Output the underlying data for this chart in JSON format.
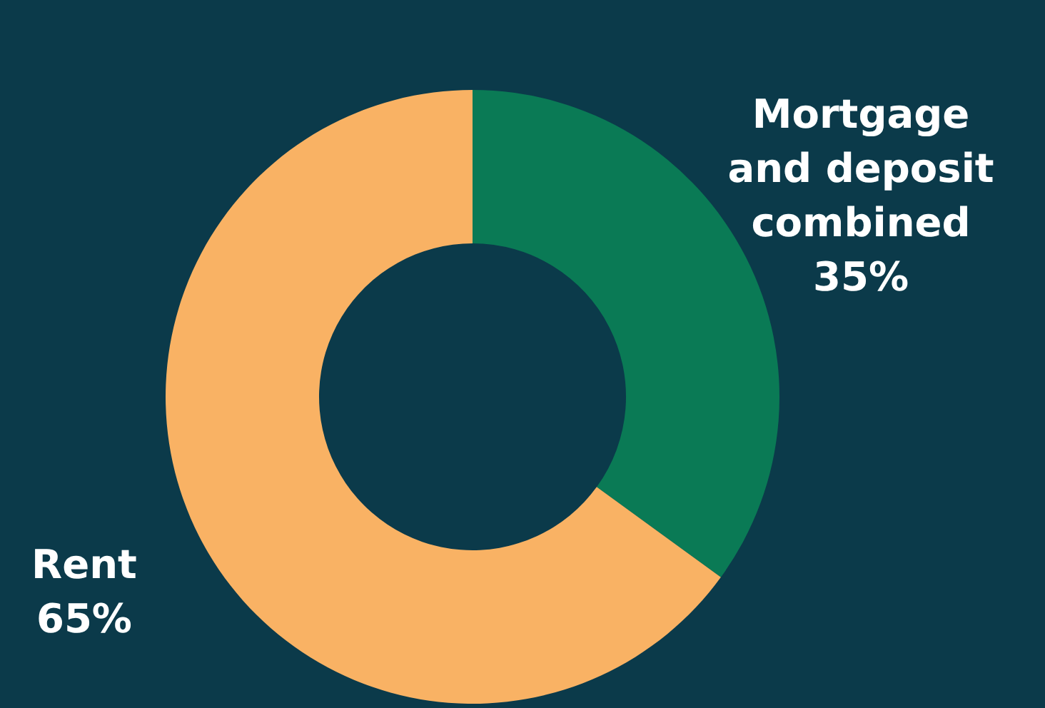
{
  "chart_data": {
    "type": "donut",
    "categories": [
      "Mortgage and deposit combined",
      "Rent"
    ],
    "values": [
      35,
      65
    ],
    "colors": [
      "#0a7a55",
      "#f9b264"
    ],
    "value_labels": [
      "35%",
      "65%"
    ]
  }
}
